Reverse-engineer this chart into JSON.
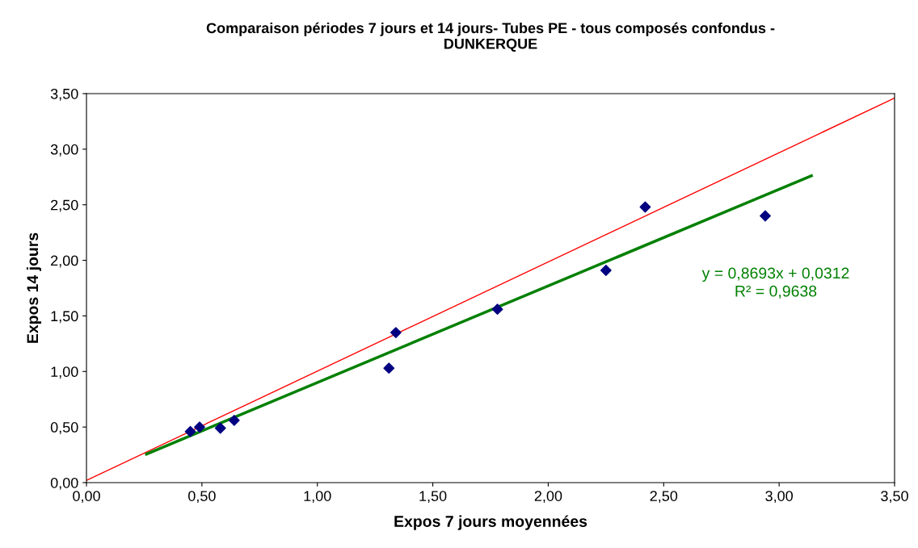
{
  "chart_data": {
    "type": "scatter",
    "title": "Comparaison périodes 7 jours et 14 jours- Tubes PE - tous composés confondus -\nDUNKERQUE",
    "xlabel": "Expos 7 jours moyennées",
    "ylabel": "Expos 14 jours",
    "series": [
      {
        "type": "line",
        "color": "#ff0000",
        "x": [
          0,
          3.5
        ],
        "values": [
          0.02,
          3.46
        ],
        "marker": "none"
      },
      {
        "type": "line",
        "color": "#008000",
        "x": [
          0.26,
          3.14
        ],
        "values": [
          0.257,
          2.761
        ],
        "marker": "none"
      },
      {
        "color": "#000080",
        "marker": "diamond",
        "x": [
          0.45,
          0.49,
          0.58,
          0.64,
          1.31,
          1.34,
          1.78,
          2.25,
          2.42,
          2.94
        ],
        "values": [
          0.46,
          0.5,
          0.49,
          0.56,
          1.03,
          1.35,
          1.56,
          1.91,
          2.48,
          2.4
        ]
      }
    ],
    "annotations": [
      "y = 0,8693x + 0,0312\nR² = 0,9638"
    ],
    "xlim": [
      0,
      3.5
    ],
    "ylim": [
      0,
      3.5
    ],
    "xticks": [
      {
        "value": 0,
        "label": "0,00"
      },
      {
        "value": 0.5,
        "label": "0,50"
      },
      {
        "value": 1,
        "label": "1,00"
      },
      {
        "value": 1.5,
        "label": "1,50"
      },
      {
        "value": 2,
        "label": "2,00"
      },
      {
        "value": 2.5,
        "label": "2,50"
      },
      {
        "value": 3,
        "label": "3,00"
      },
      {
        "value": 3.5,
        "label": "3,50"
      }
    ],
    "yticks": [
      {
        "value": 0,
        "label": "0,00"
      },
      {
        "value": 0.5,
        "label": "0,50"
      },
      {
        "value": 1,
        "label": "1,00"
      },
      {
        "value": 1.5,
        "label": "1,50"
      },
      {
        "value": 2,
        "label": "2,00"
      },
      {
        "value": 2.5,
        "label": "2,50"
      },
      {
        "value": 3,
        "label": "3,00"
      },
      {
        "value": 3.5,
        "label": "3,50"
      }
    ],
    "grid": false,
    "legend": false
  }
}
